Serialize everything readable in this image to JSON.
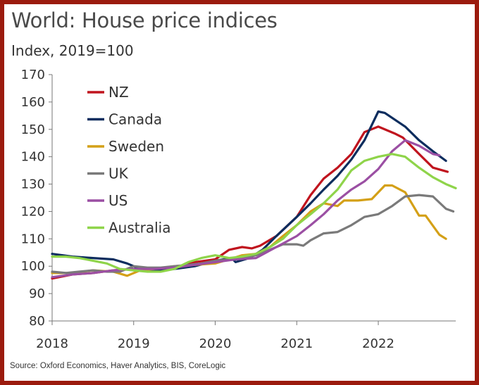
{
  "title": "World: House price indices",
  "source": "Source: Oxford Economics, Haver Analytics, BIS, CoreLogic",
  "chart_data": {
    "type": "line",
    "title": "World: House price indices",
    "ylabel": "Index, 2019=100",
    "xlabel": "",
    "ylim": [
      80,
      170
    ],
    "yticks": [
      80,
      90,
      100,
      110,
      120,
      130,
      140,
      150,
      160,
      170
    ],
    "xlim": [
      2018,
      2022.95
    ],
    "xticks": [
      2018,
      2019,
      2020,
      2021,
      2022
    ],
    "grid": false,
    "legend_position": "top-left",
    "series": [
      {
        "name": "NZ",
        "color": "#c0141e",
        "points": [
          [
            2018,
            95.5
          ],
          [
            2018.25,
            97
          ],
          [
            2018.5,
            97.5
          ],
          [
            2018.75,
            98.5
          ],
          [
            2019,
            99
          ],
          [
            2019.25,
            99
          ],
          [
            2019.5,
            99.5
          ],
          [
            2019.75,
            101.5
          ],
          [
            2020,
            102.5
          ],
          [
            2020.17,
            106
          ],
          [
            2020.33,
            107
          ],
          [
            2020.45,
            106.5
          ],
          [
            2020.55,
            107.5
          ],
          [
            2020.75,
            111
          ],
          [
            2021,
            118
          ],
          [
            2021.17,
            126
          ],
          [
            2021.33,
            132
          ],
          [
            2021.5,
            136
          ],
          [
            2021.67,
            141
          ],
          [
            2021.83,
            149
          ],
          [
            2022,
            151
          ],
          [
            2022.2,
            148.5
          ],
          [
            2022.3,
            147
          ],
          [
            2022.5,
            141
          ],
          [
            2022.67,
            136
          ],
          [
            2022.85,
            134.5
          ]
        ]
      },
      {
        "name": "Canada",
        "color": "#0d2d5e",
        "points": [
          [
            2018,
            104.5
          ],
          [
            2018.25,
            103.5
          ],
          [
            2018.5,
            103
          ],
          [
            2018.75,
            102.5
          ],
          [
            2018.92,
            101
          ],
          [
            2019.08,
            99
          ],
          [
            2019.25,
            98.5
          ],
          [
            2019.5,
            99
          ],
          [
            2019.75,
            100
          ],
          [
            2020,
            102
          ],
          [
            2020.2,
            103
          ],
          [
            2020.25,
            101.5
          ],
          [
            2020.42,
            103
          ],
          [
            2020.58,
            106
          ],
          [
            2020.75,
            111
          ],
          [
            2021,
            118
          ],
          [
            2021.17,
            123
          ],
          [
            2021.33,
            128
          ],
          [
            2021.5,
            133
          ],
          [
            2021.67,
            139
          ],
          [
            2021.83,
            146
          ],
          [
            2022,
            156.5
          ],
          [
            2022.08,
            156
          ],
          [
            2022.33,
            151
          ],
          [
            2022.5,
            146
          ],
          [
            2022.67,
            142
          ],
          [
            2022.83,
            138.5
          ]
        ]
      },
      {
        "name": "Sweden",
        "color": "#d4a017",
        "points": [
          [
            2018,
            97.5
          ],
          [
            2018.25,
            97.5
          ],
          [
            2018.5,
            98.5
          ],
          [
            2018.75,
            98
          ],
          [
            2018.92,
            96.5
          ],
          [
            2019.08,
            98.5
          ],
          [
            2019.25,
            99
          ],
          [
            2019.5,
            100
          ],
          [
            2019.75,
            100.5
          ],
          [
            2020,
            101
          ],
          [
            2020.17,
            102.5
          ],
          [
            2020.33,
            104
          ],
          [
            2020.5,
            104.5
          ],
          [
            2020.67,
            107
          ],
          [
            2020.83,
            111
          ],
          [
            2021,
            115
          ],
          [
            2021.17,
            120
          ],
          [
            2021.33,
            123
          ],
          [
            2021.5,
            122
          ],
          [
            2021.58,
            124
          ],
          [
            2021.75,
            124
          ],
          [
            2021.92,
            124.5
          ],
          [
            2022.08,
            129.5
          ],
          [
            2022.17,
            129.5
          ],
          [
            2022.33,
            127
          ],
          [
            2022.5,
            118.5
          ],
          [
            2022.58,
            118.5
          ],
          [
            2022.75,
            111.5
          ],
          [
            2022.83,
            110
          ]
        ]
      },
      {
        "name": "UK",
        "color": "#7a7a7a",
        "points": [
          [
            2018,
            98
          ],
          [
            2018.17,
            97.5
          ],
          [
            2018.33,
            98
          ],
          [
            2018.5,
            98.5
          ],
          [
            2018.67,
            98
          ],
          [
            2018.83,
            98
          ],
          [
            2019,
            100
          ],
          [
            2019.17,
            99.5
          ],
          [
            2019.33,
            99.5
          ],
          [
            2019.5,
            100
          ],
          [
            2019.67,
            100.5
          ],
          [
            2019.83,
            101
          ],
          [
            2020,
            102
          ],
          [
            2020.17,
            102.5
          ],
          [
            2020.33,
            103
          ],
          [
            2020.5,
            104
          ],
          [
            2020.67,
            106
          ],
          [
            2020.83,
            108
          ],
          [
            2021,
            108
          ],
          [
            2021.08,
            107.5
          ],
          [
            2021.17,
            109.5
          ],
          [
            2021.33,
            112
          ],
          [
            2021.5,
            112.5
          ],
          [
            2021.67,
            115
          ],
          [
            2021.83,
            118
          ],
          [
            2022,
            119
          ],
          [
            2022.17,
            122
          ],
          [
            2022.33,
            125.5
          ],
          [
            2022.5,
            126
          ],
          [
            2022.67,
            125.5
          ],
          [
            2022.83,
            121
          ],
          [
            2022.92,
            120
          ]
        ]
      },
      {
        "name": "US",
        "color": "#9b4fa3",
        "points": [
          [
            2018,
            96
          ],
          [
            2018.25,
            97
          ],
          [
            2018.5,
            97.5
          ],
          [
            2018.75,
            98.5
          ],
          [
            2019,
            99
          ],
          [
            2019.25,
            99
          ],
          [
            2019.5,
            99.5
          ],
          [
            2019.75,
            100.5
          ],
          [
            2020,
            101.5
          ],
          [
            2020.25,
            102.5
          ],
          [
            2020.5,
            103
          ],
          [
            2020.75,
            107
          ],
          [
            2021,
            111
          ],
          [
            2021.17,
            115
          ],
          [
            2021.33,
            119
          ],
          [
            2021.5,
            124
          ],
          [
            2021.67,
            128
          ],
          [
            2021.83,
            131
          ],
          [
            2022,
            135.5
          ],
          [
            2022.17,
            142
          ],
          [
            2022.33,
            146
          ],
          [
            2022.5,
            144
          ],
          [
            2022.67,
            141
          ],
          [
            2022.75,
            140.5
          ]
        ]
      },
      {
        "name": "Australia",
        "color": "#8fd44a",
        "points": [
          [
            2018,
            103.5
          ],
          [
            2018.17,
            103.5
          ],
          [
            2018.33,
            103
          ],
          [
            2018.5,
            102
          ],
          [
            2018.67,
            101
          ],
          [
            2018.83,
            99
          ],
          [
            2019,
            98.5
          ],
          [
            2019.17,
            98
          ],
          [
            2019.33,
            98
          ],
          [
            2019.5,
            99
          ],
          [
            2019.67,
            101.5
          ],
          [
            2019.83,
            103
          ],
          [
            2020,
            104
          ],
          [
            2020.17,
            103
          ],
          [
            2020.33,
            103.5
          ],
          [
            2020.5,
            104.5
          ],
          [
            2020.67,
            107
          ],
          [
            2020.83,
            110
          ],
          [
            2021,
            115
          ],
          [
            2021.17,
            119
          ],
          [
            2021.33,
            123
          ],
          [
            2021.5,
            128
          ],
          [
            2021.67,
            135
          ],
          [
            2021.83,
            138.5
          ],
          [
            2022,
            140
          ],
          [
            2022.17,
            141
          ],
          [
            2022.33,
            140
          ],
          [
            2022.5,
            136
          ],
          [
            2022.67,
            132.5
          ],
          [
            2022.83,
            130
          ],
          [
            2022.95,
            128.5
          ]
        ]
      }
    ]
  }
}
